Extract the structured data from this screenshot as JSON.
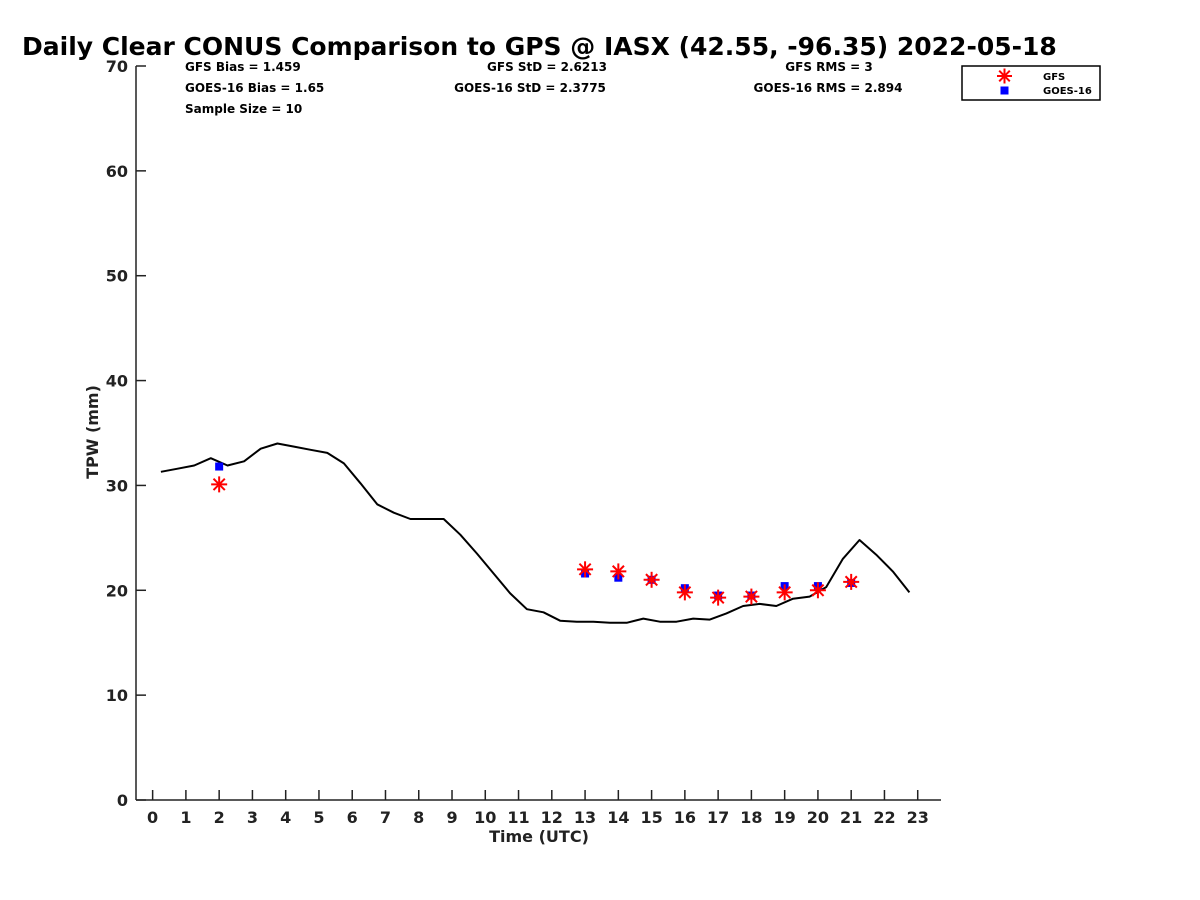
{
  "chart_data": {
    "type": "line",
    "title": "Daily Clear CONUS Comparison to GPS @ IASX (42.55, -96.35) 2022-05-18",
    "xlabel": "Time (UTC)",
    "ylabel": "TPW (mm)",
    "xlim": [
      -0.5,
      23.7
    ],
    "ylim": [
      0,
      70
    ],
    "x_ticks": [
      0,
      1,
      2,
      3,
      4,
      5,
      6,
      7,
      8,
      9,
      10,
      11,
      12,
      13,
      14,
      15,
      16,
      17,
      18,
      19,
      20,
      21,
      22,
      23
    ],
    "y_ticks": [
      0,
      10,
      20,
      30,
      40,
      50,
      60,
      70
    ],
    "stats": {
      "gfs_bias": "GFS Bias = 1.459",
      "goes_bias": "GOES-16 Bias = 1.65",
      "sample_size": "Sample Size = 10",
      "gfs_std": "GFS StD = 2.6213",
      "goes_std": "GOES-16 StD = 2.3775",
      "gfs_rms": "GFS RMS = 3",
      "goes_rms": "GOES-16 RMS = 2.894"
    },
    "legend": [
      "GFS",
      "GOES-16"
    ],
    "legend_position": "top-right",
    "colors": {
      "gps": "#000000",
      "gfs": "#ff0000",
      "goes": "#0000ff"
    },
    "series": [
      {
        "name": "GPS",
        "style": "line",
        "x": [
          0.25,
          0.75,
          1.25,
          1.75,
          2.25,
          2.75,
          3.25,
          3.75,
          4.25,
          4.75,
          5.25,
          5.75,
          6.25,
          6.75,
          7.25,
          7.75,
          8.25,
          8.75,
          9.25,
          9.75,
          10.25,
          10.75,
          11.25,
          11.75,
          12.25,
          12.75,
          13.25,
          13.75,
          14.25,
          14.75,
          15.25,
          15.75,
          16.25,
          16.75,
          17.25,
          17.75,
          18.25,
          18.75,
          19.25,
          19.75,
          20.25,
          20.75,
          21.25,
          21.75,
          22.25,
          22.75
        ],
        "y": [
          31.3,
          31.6,
          31.9,
          32.6,
          31.9,
          32.3,
          33.5,
          34.0,
          33.7,
          33.4,
          33.1,
          32.1,
          30.2,
          28.2,
          27.4,
          26.8,
          26.8,
          26.8,
          25.3,
          23.5,
          21.6,
          19.7,
          18.2,
          17.9,
          17.1,
          17.0,
          17.0,
          16.9,
          16.9,
          17.3,
          17.0,
          17.0,
          17.3,
          17.2,
          17.8,
          18.5,
          18.7,
          18.5,
          19.2,
          19.4,
          20.3,
          23.0,
          24.8,
          23.4,
          21.8,
          19.8
        ]
      },
      {
        "name": "GFS",
        "style": "asterisk",
        "x": [
          2,
          13,
          14,
          15,
          16,
          17,
          18,
          19,
          20,
          21
        ],
        "y": [
          30.1,
          22.0,
          21.8,
          21.0,
          19.8,
          19.3,
          19.4,
          19.8,
          20.0,
          20.8
        ]
      },
      {
        "name": "GOES-16",
        "style": "square",
        "x": [
          2,
          13,
          14,
          15,
          16,
          17,
          18,
          19,
          20,
          21
        ],
        "y": [
          31.8,
          21.6,
          21.2,
          21.0,
          20.2,
          19.5,
          19.5,
          20.4,
          20.4,
          20.7
        ]
      }
    ]
  }
}
